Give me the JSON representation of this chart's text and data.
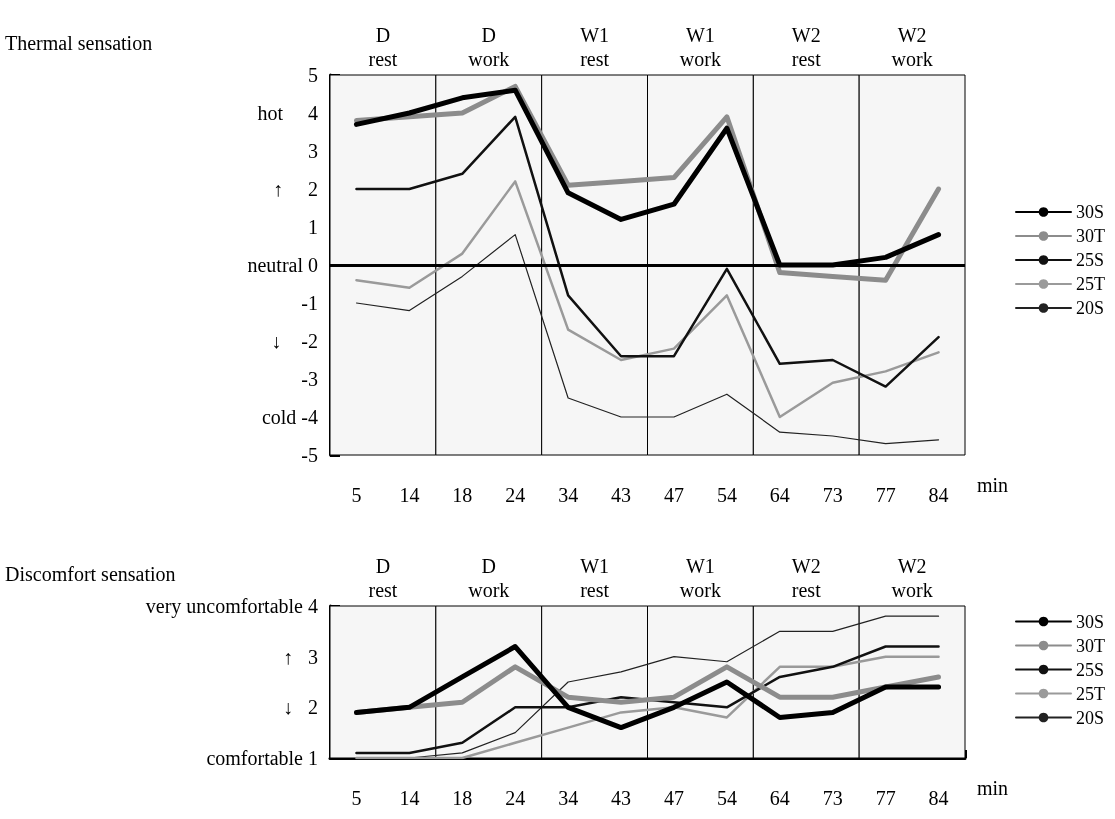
{
  "chart_data": [
    {
      "type": "line",
      "ylabel": "Thermal sensation",
      "xlabel": "min",
      "categories": [
        "5",
        "14",
        "18",
        "24",
        "34",
        "43",
        "47",
        "54",
        "64",
        "73",
        "77",
        "84"
      ],
      "series": [
        {
          "name": "30S",
          "color": "#000000",
          "values": [
            3.7,
            4.0,
            4.4,
            4.6,
            1.9,
            1.2,
            1.6,
            3.6,
            0,
            0,
            0.2,
            0.8
          ]
        },
        {
          "name": "30T",
          "color": "#8c8c8c",
          "values": [
            3.8,
            3.9,
            4.0,
            4.7,
            2.1,
            2.2,
            2.3,
            3.9,
            -0.2,
            -0.3,
            -0.4,
            2.0
          ]
        },
        {
          "name": "25S",
          "color": "#111111",
          "values": [
            2.0,
            2.0,
            2.4,
            3.9,
            -0.8,
            -2.4,
            -2.4,
            -0.1,
            -2.6,
            -2.5,
            -3.2,
            -1.9
          ]
        },
        {
          "name": "25T",
          "color": "#9a9a9a",
          "values": [
            -0.4,
            -0.6,
            0.3,
            2.2,
            -1.7,
            -2.5,
            -2.2,
            -0.8,
            -4.0,
            -3.1,
            -2.8,
            -2.3
          ]
        },
        {
          "name": "20S",
          "color": "#222222",
          "values": [
            -1.0,
            -1.2,
            -0.3,
            0.8,
            -3.5,
            -4.0,
            -4.0,
            -3.4,
            -4.4,
            -4.5,
            -4.7,
            -4.6
          ]
        }
      ],
      "ylim": [
        -5,
        5
      ],
      "yticks": [
        {
          "value": -5,
          "label": "-5"
        },
        {
          "value": -4,
          "label": "cold -4"
        },
        {
          "value": -3,
          "label": "-3"
        },
        {
          "value": -2,
          "label": "↓    -2"
        },
        {
          "value": -1,
          "label": "-1"
        },
        {
          "value": 0,
          "label": "neutral 0"
        },
        {
          "value": 1,
          "label": "1"
        },
        {
          "value": 2,
          "label": "↑     2"
        },
        {
          "value": 3,
          "label": "3"
        },
        {
          "value": 4,
          "label": "hot     4"
        },
        {
          "value": 5,
          "label": "5"
        }
      ],
      "ref_lines": [
        {
          "axis": "y",
          "value": 0
        }
      ],
      "bands": [
        {
          "axis": "x",
          "from": "5",
          "to": "14",
          "label": "D\nrest"
        },
        {
          "axis": "x",
          "from": "18",
          "to": "24",
          "label": "D\nwork"
        },
        {
          "axis": "x",
          "from": "34",
          "to": "43",
          "label": "W1\nrest"
        },
        {
          "axis": "x",
          "from": "47",
          "to": "54",
          "label": "W1\nwork"
        },
        {
          "axis": "x",
          "from": "64",
          "to": "73",
          "label": "W2\nrest"
        },
        {
          "axis": "x",
          "from": "77",
          "to": "84",
          "label": "W2\nwork"
        }
      ],
      "legend": "right",
      "marker": "none",
      "line_style": "solid"
    },
    {
      "type": "line",
      "ylabel": "Discomfort sensation",
      "xlabel": "min",
      "categories": [
        "5",
        "14",
        "18",
        "24",
        "34",
        "43",
        "47",
        "54",
        "64",
        "73",
        "77",
        "84"
      ],
      "series": [
        {
          "name": "30S",
          "color": "#000000",
          "values": [
            1.9,
            2.0,
            2.6,
            3.2,
            2.0,
            1.6,
            2.0,
            2.5,
            1.8,
            1.9,
            2.4,
            2.4
          ]
        },
        {
          "name": "30T",
          "color": "#8c8c8c",
          "values": [
            1.9,
            2.0,
            2.1,
            2.8,
            2.2,
            2.1,
            2.2,
            2.8,
            2.2,
            2.2,
            2.4,
            2.6
          ]
        },
        {
          "name": "25S",
          "color": "#111111",
          "values": [
            1.1,
            1.1,
            1.3,
            2.0,
            2.0,
            2.2,
            2.1,
            2.0,
            2.6,
            2.8,
            3.2,
            3.2
          ]
        },
        {
          "name": "25T",
          "color": "#9a9a9a",
          "values": [
            1.0,
            1.0,
            1.0,
            1.3,
            1.6,
            1.9,
            2.0,
            1.8,
            2.8,
            2.8,
            3.0,
            3.0
          ]
        },
        {
          "name": "20S",
          "color": "#222222",
          "values": [
            1.0,
            1.0,
            1.1,
            1.5,
            2.5,
            2.7,
            3.0,
            2.9,
            3.5,
            3.5,
            3.8,
            3.8
          ]
        }
      ],
      "ylim": [
        1,
        4
      ],
      "yticks": [
        {
          "value": 1,
          "label": "comfortable 1"
        },
        {
          "value": 2,
          "label": "↓   2"
        },
        {
          "value": 3,
          "label": "↑   3"
        },
        {
          "value": 4,
          "label": "very uncomfortable 4"
        }
      ],
      "bands": [
        {
          "axis": "x",
          "from": "5",
          "to": "14",
          "label": "D\nrest"
        },
        {
          "axis": "x",
          "from": "18",
          "to": "24",
          "label": "D\nwork"
        },
        {
          "axis": "x",
          "from": "34",
          "to": "43",
          "label": "W1\nrest"
        },
        {
          "axis": "x",
          "from": "47",
          "to": "54",
          "label": "W1\nwork"
        },
        {
          "axis": "x",
          "from": "64",
          "to": "73",
          "label": "W2\nrest"
        },
        {
          "axis": "x",
          "from": "77",
          "to": "84",
          "label": "W2\nwork"
        }
      ],
      "legend": "right",
      "marker": "none",
      "line_style": "solid"
    }
  ]
}
